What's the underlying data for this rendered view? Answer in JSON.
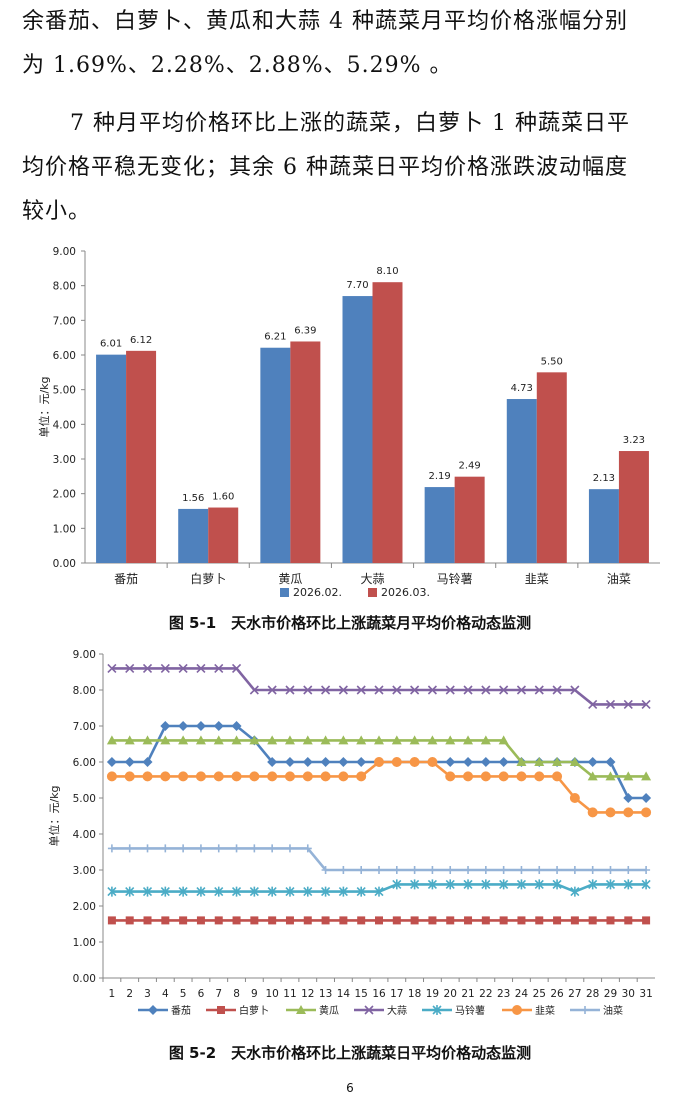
{
  "text": {
    "para1_line1": "余番茄、白萝卜、黄瓜和大蒜 4 种蔬菜月平均价格涨幅分别",
    "para1_line2": "为 1.69%、2.28%、2.88%、5.29% 。",
    "para2_line1": "7 种月平均价格环比上涨的蔬菜，白萝卜 1 种蔬菜日平",
    "para2_line2": "均价格平稳无变化；其余 6 种蔬菜日平均价格涨跌波动幅度",
    "para2_line3": "较小。"
  },
  "captions": {
    "fig1": "图 5-1　天水市价格环比上涨蔬菜月平均价格动态监测",
    "fig2": "图 5-2　天水市价格环比上涨蔬菜日平均价格动态监测"
  },
  "page_number": "6",
  "chart_data": [
    {
      "type": "bar",
      "title": "",
      "ylabel": "单位：元/kg",
      "ylim": [
        0,
        9
      ],
      "yticks": [
        "0.00",
        "1.00",
        "2.00",
        "3.00",
        "4.00",
        "5.00",
        "6.00",
        "7.00",
        "8.00",
        "9.00"
      ],
      "categories": [
        "番茄",
        "白萝卜",
        "黄瓜",
        "大蒜",
        "马铃薯",
        "韭菜",
        "油菜"
      ],
      "series": [
        {
          "name": "2026.02.",
          "color": "#4f81bd",
          "values": [
            6.01,
            1.56,
            6.21,
            7.7,
            2.19,
            4.73,
            2.13
          ]
        },
        {
          "name": "2026.03.",
          "color": "#c0504d",
          "values": [
            6.12,
            1.6,
            6.39,
            8.1,
            2.49,
            5.5,
            3.23
          ]
        }
      ],
      "legend": "bottom"
    },
    {
      "type": "line",
      "title": "",
      "ylabel": "单位：元/kg",
      "ylim": [
        0,
        9
      ],
      "yticks": [
        "0.00",
        "1.00",
        "2.00",
        "3.00",
        "4.00",
        "5.00",
        "6.00",
        "7.00",
        "8.00",
        "9.00"
      ],
      "x": [
        1,
        2,
        3,
        4,
        5,
        6,
        7,
        8,
        9,
        10,
        11,
        12,
        13,
        14,
        15,
        16,
        17,
        18,
        19,
        20,
        21,
        22,
        23,
        24,
        25,
        26,
        27,
        28,
        29,
        30,
        31
      ],
      "series": [
        {
          "name": "番茄",
          "color": "#4f81bd",
          "marker": "diamond",
          "values": [
            6,
            6,
            6,
            7,
            7,
            7,
            7,
            7,
            6.6,
            6,
            6,
            6,
            6,
            6,
            6,
            6,
            6,
            6,
            6,
            6,
            6,
            6,
            6,
            6,
            6,
            6,
            6,
            6,
            6,
            5,
            5
          ]
        },
        {
          "name": "白萝卜",
          "color": "#c0504d",
          "marker": "square",
          "values": [
            1.6,
            1.6,
            1.6,
            1.6,
            1.6,
            1.6,
            1.6,
            1.6,
            1.6,
            1.6,
            1.6,
            1.6,
            1.6,
            1.6,
            1.6,
            1.6,
            1.6,
            1.6,
            1.6,
            1.6,
            1.6,
            1.6,
            1.6,
            1.6,
            1.6,
            1.6,
            1.6,
            1.6,
            1.6,
            1.6,
            1.6
          ]
        },
        {
          "name": "黄瓜",
          "color": "#9bbb59",
          "marker": "triangle",
          "values": [
            6.6,
            6.6,
            6.6,
            6.6,
            6.6,
            6.6,
            6.6,
            6.6,
            6.6,
            6.6,
            6.6,
            6.6,
            6.6,
            6.6,
            6.6,
            6.6,
            6.6,
            6.6,
            6.6,
            6.6,
            6.6,
            6.6,
            6.6,
            6,
            6,
            6,
            6,
            5.6,
            5.6,
            5.6,
            5.6
          ]
        },
        {
          "name": "大蒜",
          "color": "#8064a2",
          "marker": "x",
          "values": [
            8.6,
            8.6,
            8.6,
            8.6,
            8.6,
            8.6,
            8.6,
            8.6,
            8,
            8,
            8,
            8,
            8,
            8,
            8,
            8,
            8,
            8,
            8,
            8,
            8,
            8,
            8,
            8,
            8,
            8,
            8,
            7.6,
            7.6,
            7.6,
            7.6
          ]
        },
        {
          "name": "马铃薯",
          "color": "#4bacc6",
          "marker": "star",
          "values": [
            2.4,
            2.4,
            2.4,
            2.4,
            2.4,
            2.4,
            2.4,
            2.4,
            2.4,
            2.4,
            2.4,
            2.4,
            2.4,
            2.4,
            2.4,
            2.4,
            2.6,
            2.6,
            2.6,
            2.6,
            2.6,
            2.6,
            2.6,
            2.6,
            2.6,
            2.6,
            2.4,
            2.6,
            2.6,
            2.6,
            2.6
          ]
        },
        {
          "name": "韭菜",
          "color": "#f79646",
          "marker": "circle",
          "values": [
            5.6,
            5.6,
            5.6,
            5.6,
            5.6,
            5.6,
            5.6,
            5.6,
            5.6,
            5.6,
            5.6,
            5.6,
            5.6,
            5.6,
            5.6,
            6,
            6,
            6,
            6,
            5.6,
            5.6,
            5.6,
            5.6,
            5.6,
            5.6,
            5.6,
            5,
            4.6,
            4.6,
            4.6,
            4.6
          ]
        },
        {
          "name": "油菜",
          "color": "#95b3d7",
          "marker": "plus",
          "values": [
            3.6,
            3.6,
            3.6,
            3.6,
            3.6,
            3.6,
            3.6,
            3.6,
            3.6,
            3.6,
            3.6,
            3.6,
            3,
            3,
            3,
            3,
            3,
            3,
            3,
            3,
            3,
            3,
            3,
            3,
            3,
            3,
            3,
            3,
            3,
            3,
            3
          ]
        }
      ],
      "legend": "bottom"
    }
  ]
}
